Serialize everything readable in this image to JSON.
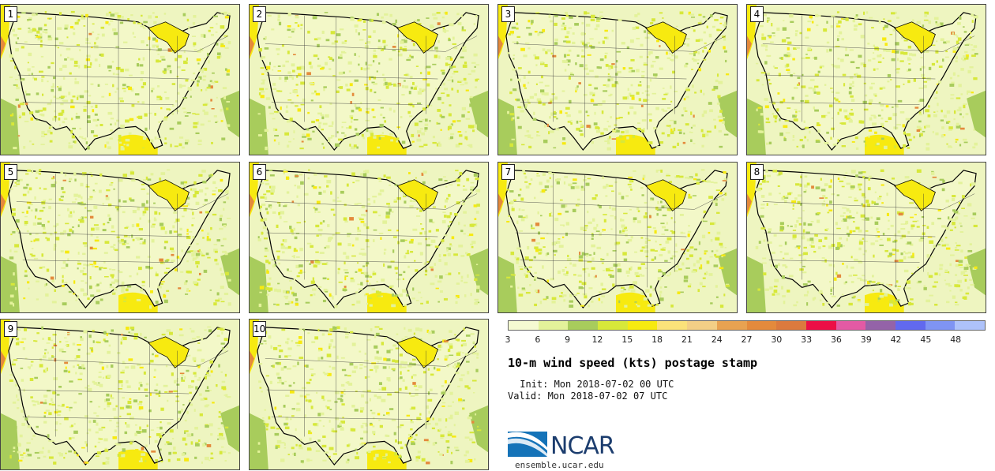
{
  "figure": {
    "title": "10-m wind speed (kts) postage stamp",
    "init_label": " Init: Mon 2018-07-02 00 UTC",
    "valid_label": "Valid: Mon 2018-07-02 07 UTC",
    "site": "ensemble.ucar.edu",
    "logo_text": "NCAR"
  },
  "panels": [
    {
      "member": "1"
    },
    {
      "member": "2"
    },
    {
      "member": "3"
    },
    {
      "member": "4"
    },
    {
      "member": "5"
    },
    {
      "member": "6"
    },
    {
      "member": "7"
    },
    {
      "member": "8"
    },
    {
      "member": "9"
    },
    {
      "member": "10"
    }
  ],
  "colorbar": {
    "ticks": [
      "3",
      "6",
      "9",
      "12",
      "15",
      "18",
      "21",
      "24",
      "27",
      "30",
      "33",
      "36",
      "39",
      "42",
      "45",
      "48"
    ],
    "colors": [
      "#f5fad2",
      "#e3f29a",
      "#a8cc5c",
      "#d7e83a",
      "#f7ea10",
      "#fbe27a",
      "#f3cf86",
      "#e8a251",
      "#e48a3c",
      "#dc7a3e",
      "#ec0f46",
      "#e25aa4",
      "#9463a8",
      "#6169ef",
      "#7f94f3",
      "#aec2fa"
    ]
  },
  "colors": {
    "land_base": "#f3f8c8",
    "land_mid": "#e3f29a",
    "land_dark": "#a8cc5c",
    "yellow": "#f7ea10",
    "orange": "#e48a3c",
    "red": "#ec0f46"
  }
}
